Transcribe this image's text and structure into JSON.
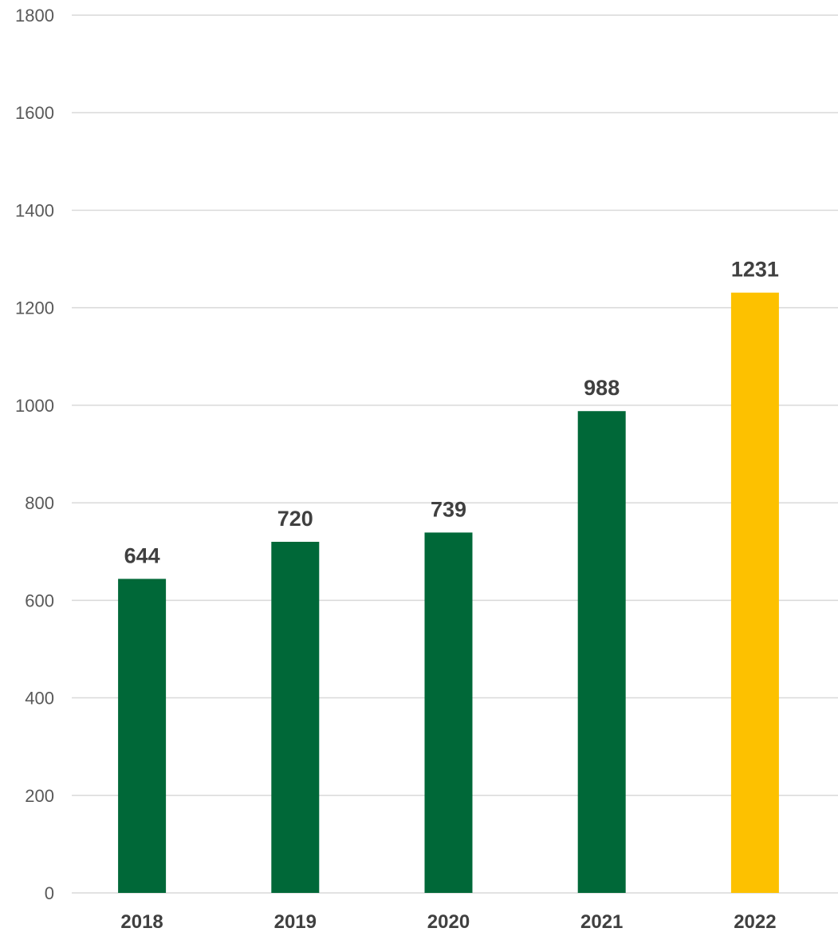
{
  "chart_data": {
    "type": "bar",
    "categories": [
      "2018",
      "2019",
      "2020",
      "2021",
      "2022"
    ],
    "values": [
      644,
      720,
      739,
      988,
      1231
    ],
    "bar_colors": [
      "#006838",
      "#006838",
      "#006838",
      "#006838",
      "#FDC100"
    ],
    "ylim": [
      0,
      1800
    ],
    "yticks": [
      "0",
      "200",
      "400",
      "600",
      "800",
      "1000",
      "1200",
      "1400",
      "1600",
      "1800"
    ],
    "grid": true,
    "legend": false,
    "title": "",
    "xlabel": "",
    "ylabel": ""
  }
}
